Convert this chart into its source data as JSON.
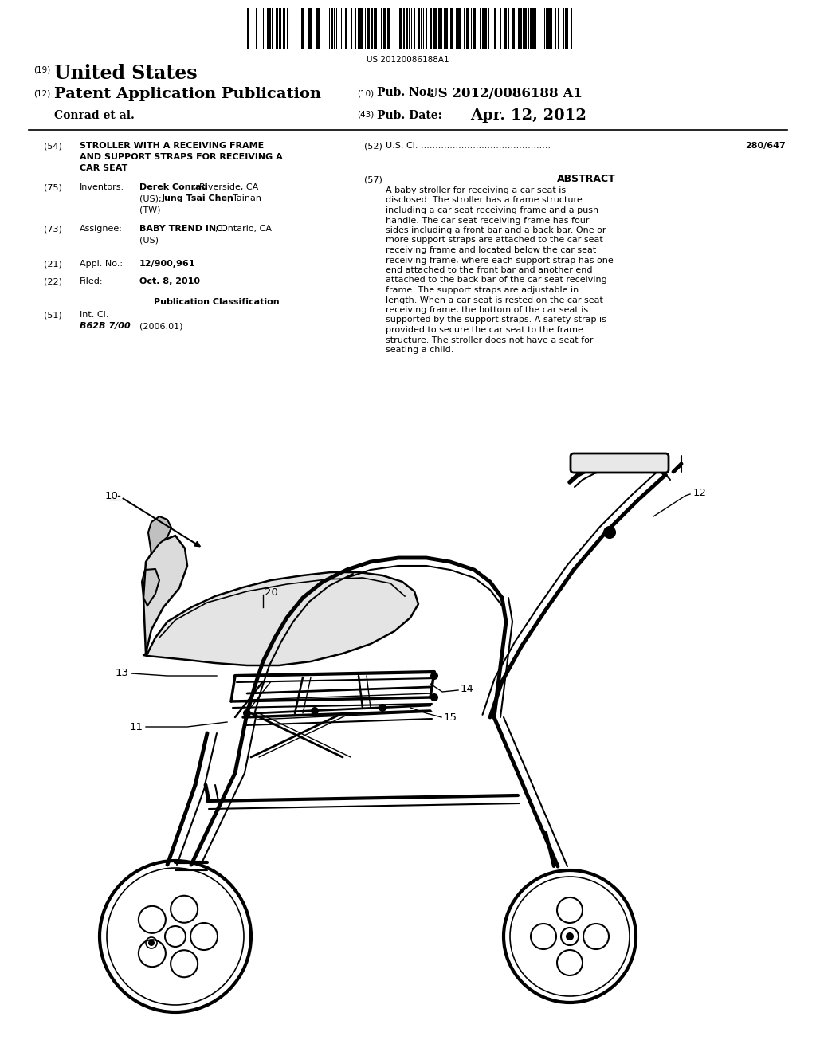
{
  "background_color": "#ffffff",
  "barcode_text": "US 20120086188A1",
  "patent_number": "US 2012/0086188 A1",
  "pub_date": "Apr. 12, 2012",
  "country": "United States",
  "app_type": "Patent Application Publication",
  "inventors_label": "Conrad et al.",
  "pub_no_label": "Pub. No.:",
  "pub_date_label": "Pub. Date:",
  "us_cl_dots": ".............................................",
  "us_cl_value": "280/647",
  "abstract_title": "ABSTRACT",
  "abstract_text": "A baby stroller for receiving a car seat is disclosed. The stroller has a frame structure including a car seat receiving frame and a push handle. The car seat receiving frame has four sides including a front bar and a back bar. One or more support straps are attached to the car seat receiving frame and located below the car seat receiving frame, where each support strap has one end attached to the front bar and another end attached to the back bar of the car seat receiving frame. The support straps are adjustable in length. When a car seat is rested on the car seat receiving frame, the bottom of the car seat is supported by the support straps. A safety strap is provided to secure the car seat to the frame structure. The stroller does not have a seat for seating a child.",
  "title_line1": "STROLLER WITH A RECEIVING FRAME",
  "title_line2": "AND SUPPORT STRAPS FOR RECEIVING A",
  "title_line3": "CAR SEAT",
  "inventor_name1": "Derek Conrad",
  "inventor_rest1": ", Riverside, CA",
  "inventor_line2a": "(US); ",
  "inventor_name2": "Jung Tsai Chen",
  "inventor_rest2": ", Tainan",
  "inventor_line3": "(TW)",
  "assignee_name": "BABY TREND INC.",
  "assignee_rest": ", Ontario, CA",
  "assignee_line2": "(US)",
  "appl_no": "12/900,961",
  "filed": "Oct. 8, 2010",
  "int_cl_value": "B62B 7/00",
  "int_cl_year": "(2006.01)"
}
